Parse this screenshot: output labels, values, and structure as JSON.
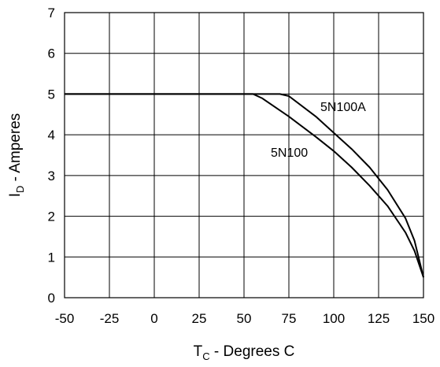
{
  "chart_data": {
    "type": "line",
    "xlabel_main": "T",
    "xlabel_sub": "C",
    "xlabel_rest": " - Degrees C",
    "ylabel_main": "I",
    "ylabel_sub": "D",
    "ylabel_rest": " - Amperes",
    "xlim": [
      -50,
      150
    ],
    "ylim": [
      0,
      7
    ],
    "xticks": [
      -50,
      -25,
      0,
      25,
      50,
      75,
      100,
      125,
      150
    ],
    "yticks": [
      0,
      1,
      2,
      3,
      4,
      5,
      6,
      7
    ],
    "grid": true,
    "line_color": "#000000",
    "series": [
      {
        "name": "5N100A",
        "x": [
          -50,
          70,
          75,
          90,
          100,
          110,
          120,
          130,
          140,
          145,
          150
        ],
        "y": [
          5,
          5,
          4.95,
          4.45,
          4.05,
          3.65,
          3.2,
          2.65,
          1.95,
          1.4,
          0.5
        ]
      },
      {
        "name": "5N100",
        "x": [
          -50,
          55,
          60,
          75,
          90,
          100,
          110,
          120,
          130,
          140,
          145,
          150
        ],
        "y": [
          5,
          5,
          4.9,
          4.45,
          3.95,
          3.6,
          3.2,
          2.75,
          2.25,
          1.6,
          1.15,
          0.5
        ]
      }
    ]
  }
}
